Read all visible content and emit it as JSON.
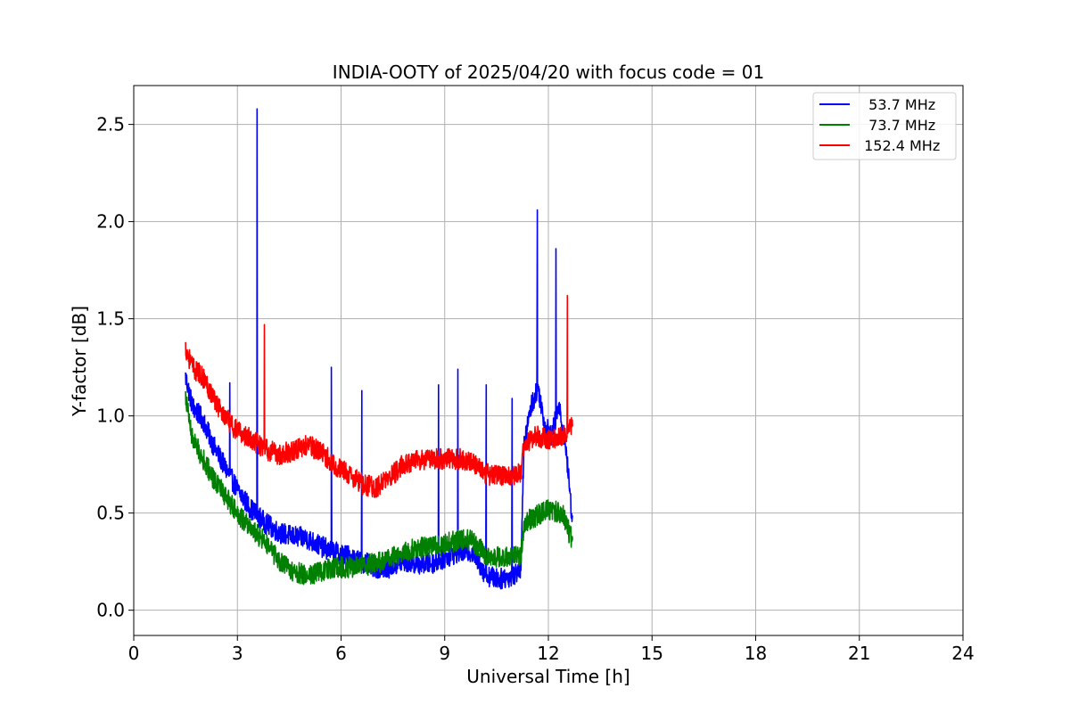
{
  "chart_data": {
    "type": "line",
    "title": "INDIA-OOTY of 2025/04/20 with focus code = 01",
    "xlabel": "Universal Time [h]",
    "ylabel": "Y-factor [dB]",
    "xlim": [
      0,
      24
    ],
    "ylim": [
      -0.13,
      2.7
    ],
    "xticks": [
      0,
      3,
      6,
      9,
      12,
      15,
      18,
      21,
      24
    ],
    "xtick_labels": [
      "0",
      "3",
      "6",
      "9",
      "12",
      "15",
      "18",
      "21",
      "24"
    ],
    "yticks": [
      0.0,
      0.5,
      1.0,
      1.5,
      2.0,
      2.5
    ],
    "ytick_labels": [
      "0.0",
      "0.5",
      "1.0",
      "1.5",
      "2.0",
      "2.5"
    ],
    "grid": true,
    "legend_position": "top-right",
    "series": [
      {
        "name": "  53.7 MHz",
        "color": "#0000ff",
        "x": [
          1.5,
          1.7,
          2.0,
          2.3,
          2.6,
          3.0,
          3.4,
          3.8,
          4.2,
          4.6,
          5.0,
          5.4,
          5.8,
          6.2,
          6.6,
          7.0,
          7.4,
          7.8,
          8.2,
          8.6,
          9.0,
          9.4,
          9.8,
          10.2,
          10.6,
          11.0,
          11.2,
          11.3,
          11.5,
          11.7,
          11.9,
          12.1,
          12.3,
          12.5,
          12.7
        ],
        "y": [
          1.2,
          1.05,
          0.98,
          0.85,
          0.75,
          0.62,
          0.52,
          0.45,
          0.4,
          0.38,
          0.37,
          0.33,
          0.3,
          0.28,
          0.25,
          0.22,
          0.22,
          0.25,
          0.24,
          0.24,
          0.27,
          0.3,
          0.3,
          0.18,
          0.16,
          0.18,
          0.22,
          0.85,
          1.05,
          1.15,
          0.95,
          0.9,
          1.05,
          0.85,
          0.45
        ],
        "spikes": [
          [
            3.57,
            2.58
          ],
          [
            5.72,
            1.25
          ],
          [
            11.68,
            2.06
          ],
          [
            12.22,
            1.86
          ],
          [
            9.38,
            1.24
          ],
          [
            8.82,
            1.16
          ],
          [
            10.2,
            1.16
          ],
          [
            6.6,
            1.13
          ],
          [
            10.95,
            1.09
          ],
          [
            2.78,
            1.17
          ]
        ]
      },
      {
        "name": "  73.7 MHz",
        "color": "#008000",
        "x": [
          1.5,
          1.7,
          2.0,
          2.3,
          2.6,
          3.0,
          3.4,
          3.8,
          4.2,
          4.6,
          5.0,
          5.4,
          5.8,
          6.2,
          6.6,
          7.0,
          7.4,
          7.8,
          8.2,
          8.6,
          9.0,
          9.4,
          9.8,
          10.2,
          10.6,
          11.0,
          11.2,
          11.3,
          11.6,
          12.0,
          12.4,
          12.7
        ],
        "y": [
          1.1,
          0.88,
          0.78,
          0.68,
          0.6,
          0.5,
          0.42,
          0.35,
          0.25,
          0.2,
          0.18,
          0.2,
          0.22,
          0.22,
          0.23,
          0.24,
          0.26,
          0.3,
          0.32,
          0.33,
          0.34,
          0.36,
          0.36,
          0.28,
          0.27,
          0.28,
          0.28,
          0.45,
          0.48,
          0.52,
          0.5,
          0.35
        ],
        "spikes": []
      },
      {
        "name": " 152.4 MHz",
        "color": "#ff0000",
        "x": [
          1.5,
          1.7,
          2.0,
          2.3,
          2.6,
          3.0,
          3.4,
          3.8,
          4.2,
          4.6,
          5.0,
          5.4,
          5.8,
          6.2,
          6.6,
          7.0,
          7.4,
          7.8,
          8.2,
          8.6,
          9.0,
          9.4,
          9.8,
          10.2,
          10.6,
          11.0,
          11.2,
          11.3,
          11.6,
          12.0,
          12.4,
          12.7
        ],
        "y": [
          1.35,
          1.25,
          1.2,
          1.1,
          1.0,
          0.92,
          0.88,
          0.83,
          0.8,
          0.82,
          0.85,
          0.82,
          0.75,
          0.7,
          0.65,
          0.63,
          0.68,
          0.75,
          0.77,
          0.78,
          0.78,
          0.78,
          0.76,
          0.7,
          0.69,
          0.7,
          0.7,
          0.85,
          0.9,
          0.88,
          0.9,
          0.95
        ],
        "spikes": [
          [
            12.55,
            1.62
          ],
          [
            3.78,
            1.47
          ]
        ]
      }
    ]
  }
}
